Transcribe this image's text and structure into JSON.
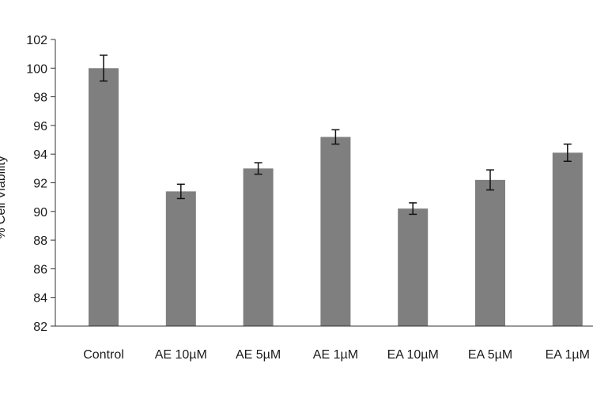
{
  "chart_data": {
    "type": "bar",
    "title": "",
    "xlabel": "",
    "ylabel": "% Cell Viability",
    "ylim": [
      82,
      102
    ],
    "yticks": [
      82,
      84,
      86,
      88,
      90,
      92,
      94,
      96,
      98,
      100,
      102
    ],
    "categories": [
      "Control",
      "AE 10µM",
      "AE 5µM",
      "AE 1µM",
      "EA 10µM",
      "EA 5µM",
      "EA 1µM"
    ],
    "values": [
      100.0,
      91.4,
      93.0,
      95.2,
      90.2,
      92.2,
      94.1
    ],
    "errors": [
      0.9,
      0.5,
      0.4,
      0.5,
      0.4,
      0.7,
      0.6
    ],
    "bar_color": "#7f7f7f",
    "grid": false,
    "legend": "none"
  }
}
